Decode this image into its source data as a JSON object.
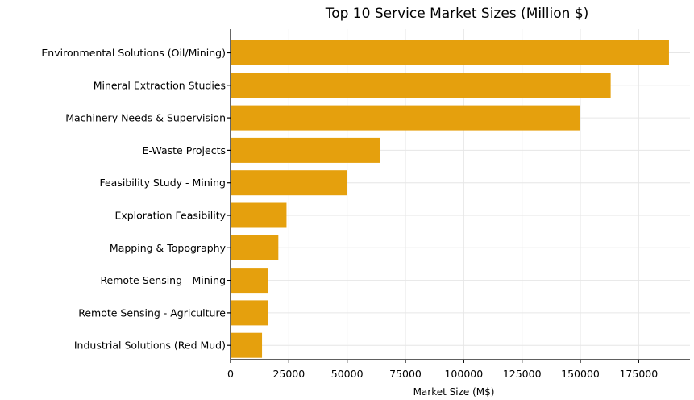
{
  "chart_data": {
    "type": "bar",
    "orientation": "horizontal",
    "title": "Top 10 Service Market Sizes (Million $)",
    "xlabel": "Market Size (M$)",
    "ylabel": "",
    "categories": [
      "Environmental Solutions (Oil/Mining)",
      "Mineral Extraction Studies",
      "Machinery Needs & Supervision",
      "E-Waste Projects",
      "Feasibility Study - Mining",
      "Exploration Feasibility",
      "Mapping & Topography",
      "Remote Sensing - Mining",
      "Remote Sensing - Agriculture",
      "Industrial Solutions (Red Mud)"
    ],
    "values": [
      188000,
      163000,
      150000,
      64000,
      50000,
      24000,
      20500,
      16000,
      16000,
      13500
    ],
    "xlim": [
      0,
      197000
    ],
    "xticks": [
      0,
      25000,
      50000,
      75000,
      100000,
      125000,
      150000,
      175000
    ],
    "xtick_labels": [
      "0",
      "25000",
      "50000",
      "75000",
      "100000",
      "125000",
      "150000",
      "175000"
    ],
    "grid": true,
    "bar_color": "#e5a00d"
  }
}
